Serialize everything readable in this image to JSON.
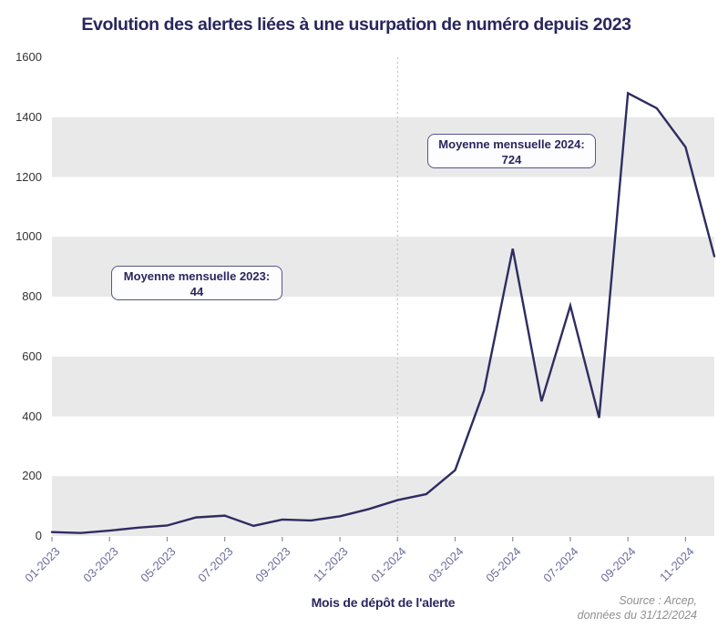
{
  "chart_data": {
    "type": "line",
    "title": "Evolution des alertes liées à une usurpation de numéro depuis 2023",
    "xlabel": "Mois de dépôt de l'alerte",
    "ylabel": "",
    "x": [
      "01-2023",
      "02-2023",
      "03-2023",
      "04-2023",
      "05-2023",
      "06-2023",
      "07-2023",
      "08-2023",
      "09-2023",
      "10-2023",
      "11-2023",
      "12-2023",
      "01-2024",
      "02-2024",
      "03-2024",
      "04-2024",
      "05-2024",
      "06-2024",
      "07-2024",
      "08-2024",
      "09-2024",
      "10-2024",
      "11-2024",
      "12-2024"
    ],
    "values": [
      13,
      10,
      18,
      28,
      35,
      62,
      68,
      34,
      55,
      52,
      66,
      90,
      120,
      140,
      220,
      485,
      960,
      450,
      770,
      395,
      1480,
      1430,
      1300,
      935
    ],
    "ylim": [
      0,
      1600
    ],
    "yticks": [
      0,
      200,
      400,
      600,
      800,
      1000,
      1200,
      1400,
      1600
    ],
    "xtick_labels": [
      "01-2023",
      "03-2023",
      "05-2023",
      "07-2023",
      "09-2023",
      "11-2023",
      "01-2024",
      "03-2024",
      "05-2024",
      "07-2024",
      "09-2024",
      "11-2024"
    ],
    "grid": "alternating horizontal gray bands (0-200, 400-600, 800-1000, 1200-1400)",
    "legend": "none",
    "divider_at": "01-2024",
    "annotations": [
      {
        "label": "Moyenne mensuelle 2023:",
        "value": "44"
      },
      {
        "label": "Moyenne mensuelle 2024:",
        "value": "724"
      }
    ]
  },
  "source": {
    "line1": "Source : Arcep,",
    "line2": "données du 31/12/2024"
  },
  "colors": {
    "line": "#2f2c62",
    "band": "#e9e9e9",
    "navy_text": "#29265e",
    "xtick_text": "#6b6b9e",
    "ytick_text": "#333333",
    "axis_tick": "#8f8f8f",
    "divider": "#c4c4c4",
    "source_text": "#8f8f8f",
    "annotation_border": "#55548f",
    "annotation_bg": "#fdfdff"
  }
}
